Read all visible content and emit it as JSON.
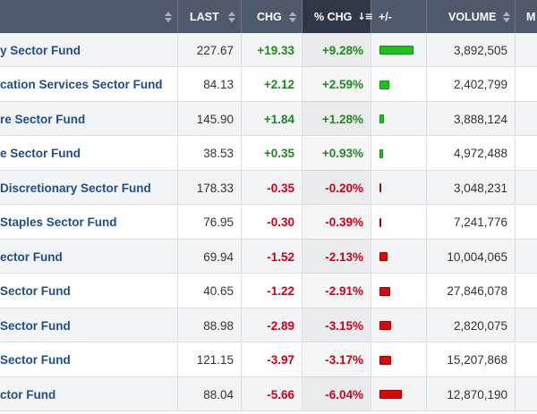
{
  "header": {
    "columns": [
      {
        "key": "name",
        "label": ""
      },
      {
        "key": "last",
        "label": "LAST"
      },
      {
        "key": "chg",
        "label": "CHG"
      },
      {
        "key": "pctchg",
        "label": "% CHG"
      },
      {
        "key": "bar",
        "label": "+/-"
      },
      {
        "key": "volume",
        "label": "VOLUME"
      },
      {
        "key": "more",
        "label": "M"
      }
    ]
  },
  "sort": {
    "column": "% CHG",
    "direction": "descending"
  },
  "colors": {
    "header_bg": "#4e596c",
    "header_active": "#2f3847",
    "link": "#1f4e8c",
    "positive": "#1f8a1f",
    "negative": "#d0021b",
    "bar_up": "#1fbf1f",
    "bar_down": "#d50a0a"
  },
  "rows": [
    {
      "name": "y Sector Fund",
      "last": "227.67",
      "chg": "+19.33",
      "pctchg": "+9.28%",
      "pct": 9.28,
      "volume": "3,892,505"
    },
    {
      "name": "cation Services Sector Fund",
      "last": "84.13",
      "chg": "+2.12",
      "pctchg": "+2.59%",
      "pct": 2.59,
      "volume": "2,402,799"
    },
    {
      "name": "re Sector Fund",
      "last": "145.90",
      "chg": "+1.84",
      "pctchg": "+1.28%",
      "pct": 1.28,
      "volume": "3,888,124"
    },
    {
      "name": "e Sector Fund",
      "last": "38.53",
      "chg": "+0.35",
      "pctchg": "+0.93%",
      "pct": 0.93,
      "volume": "4,972,488"
    },
    {
      "name": " Discretionary Sector Fund",
      "last": "178.33",
      "chg": "-0.35",
      "pctchg": "-0.20%",
      "pct": -0.2,
      "volume": "3,048,231"
    },
    {
      "name": " Staples Sector Fund",
      "last": "76.95",
      "chg": "-0.30",
      "pctchg": "-0.39%",
      "pct": -0.39,
      "volume": "7,241,776"
    },
    {
      "name": "ector Fund",
      "last": "69.94",
      "chg": "-1.52",
      "pctchg": "-2.13%",
      "pct": -2.13,
      "volume": "10,004,065"
    },
    {
      "name": "Sector Fund",
      "last": "40.65",
      "chg": "-1.22",
      "pctchg": "-2.91%",
      "pct": -2.91,
      "volume": "27,846,078"
    },
    {
      "name": "Sector Fund",
      "last": "88.98",
      "chg": "-2.89",
      "pctchg": "-3.15%",
      "pct": -3.15,
      "volume": "2,820,075"
    },
    {
      "name": "Sector Fund",
      "last": "121.15",
      "chg": "-3.97",
      "pctchg": "-3.17%",
      "pct": -3.17,
      "volume": "15,207,868"
    },
    {
      "name": "ctor Fund",
      "last": "88.04",
      "chg": "-5.66",
      "pctchg": "-6.04%",
      "pct": -6.04,
      "volume": "12,870,190"
    }
  ]
}
